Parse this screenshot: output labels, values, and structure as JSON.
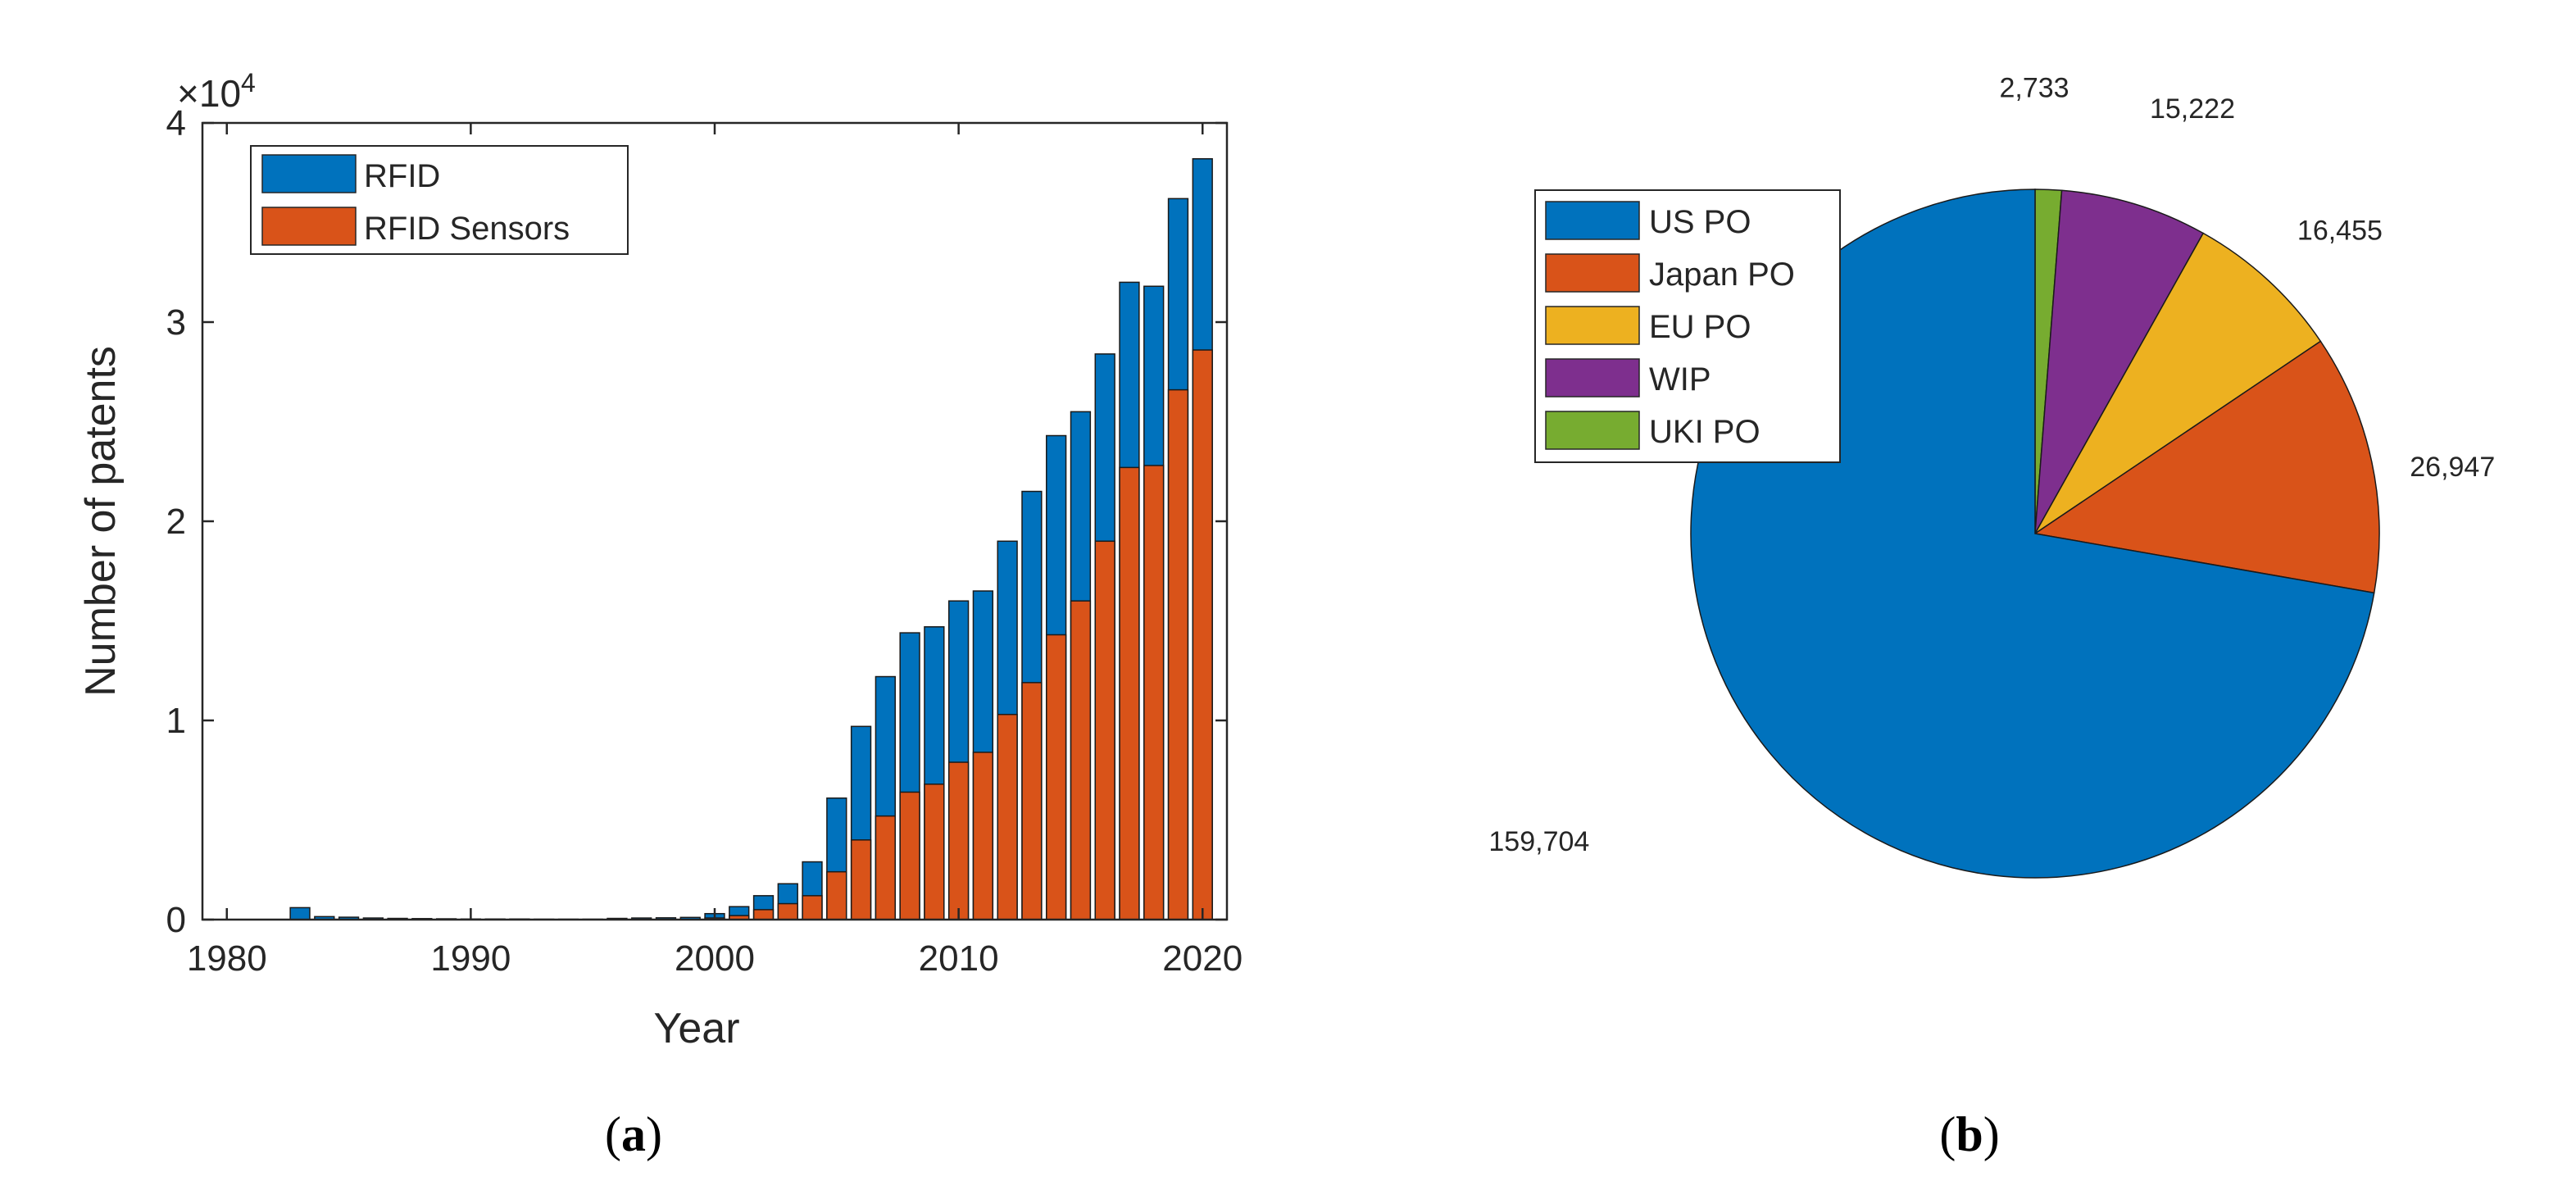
{
  "colors": {
    "rfid": "#0072BD",
    "rfid_sensors": "#D95319",
    "us_po": "#0072BD",
    "japan_po": "#D95319",
    "eu_po": "#EDB120",
    "wip": "#7E2F8E",
    "uki_po": "#77AC30",
    "axis": "#262626"
  },
  "chart_data": [
    {
      "type": "bar",
      "stacked": "overlay",
      "xlabel": "Year",
      "ylabel": "Number of patents",
      "y_multiplier_label": "×10",
      "y_multiplier_exp": "4",
      "xlim": [
        1979,
        2021
      ],
      "ylim": [
        0,
        40000
      ],
      "xticks": [
        1980,
        1990,
        2000,
        2010,
        2020
      ],
      "yticks": [
        0,
        10000,
        20000,
        30000,
        40000
      ],
      "ytick_labels": [
        "0",
        "1",
        "2",
        "3",
        "4"
      ],
      "legend_position": "top-left",
      "x": [
        1983,
        1984,
        1985,
        1986,
        1987,
        1988,
        1989,
        1990,
        1991,
        1992,
        1993,
        1994,
        1995,
        1996,
        1997,
        1998,
        1999,
        2000,
        2001,
        2002,
        2003,
        2004,
        2005,
        2006,
        2007,
        2008,
        2009,
        2010,
        2011,
        2012,
        2013,
        2014,
        2015,
        2016,
        2017,
        2018,
        2019,
        2020
      ],
      "series": [
        {
          "name": "RFID",
          "color_key": "rfid",
          "values": [
            600,
            150,
            120,
            80,
            60,
            50,
            40,
            30,
            30,
            30,
            20,
            20,
            20,
            60,
            80,
            90,
            110,
            300,
            650,
            1200,
            1800,
            2900,
            6100,
            9700,
            12200,
            14400,
            14700,
            16000,
            16500,
            19000,
            21500,
            24300,
            25500,
            28400,
            32000,
            31800,
            36200,
            38200
          ]
        },
        {
          "name": "RFID Sensors",
          "color_key": "rfid_sensors",
          "values": [
            0,
            0,
            0,
            0,
            0,
            0,
            0,
            0,
            0,
            0,
            0,
            0,
            0,
            0,
            0,
            0,
            0,
            80,
            200,
            500,
            800,
            1200,
            2400,
            4000,
            5200,
            6400,
            6800,
            7900,
            8400,
            10300,
            11900,
            14300,
            16000,
            19000,
            22700,
            22800,
            26600,
            28600
          ]
        }
      ]
    },
    {
      "type": "pie",
      "legend_position": "top-left",
      "slices": [
        {
          "label": "US PO",
          "value": 159704,
          "value_label": "159,704",
          "color_key": "us_po"
        },
        {
          "label": "Japan PO",
          "value": 26947,
          "value_label": "26,947",
          "color_key": "japan_po"
        },
        {
          "label": "EU PO",
          "value": 16455,
          "value_label": "16,455",
          "color_key": "eu_po"
        },
        {
          "label": "WIP",
          "value": 15222,
          "value_label": "15,222",
          "color_key": "wip"
        },
        {
          "label": "UKI PO",
          "value": 2733,
          "value_label": "2,733",
          "color_key": "uki_po"
        }
      ]
    }
  ],
  "captions": {
    "a": {
      "open": "(",
      "letter": "a",
      "close": ")"
    },
    "b": {
      "open": "(",
      "letter": "b",
      "close": ")"
    }
  }
}
